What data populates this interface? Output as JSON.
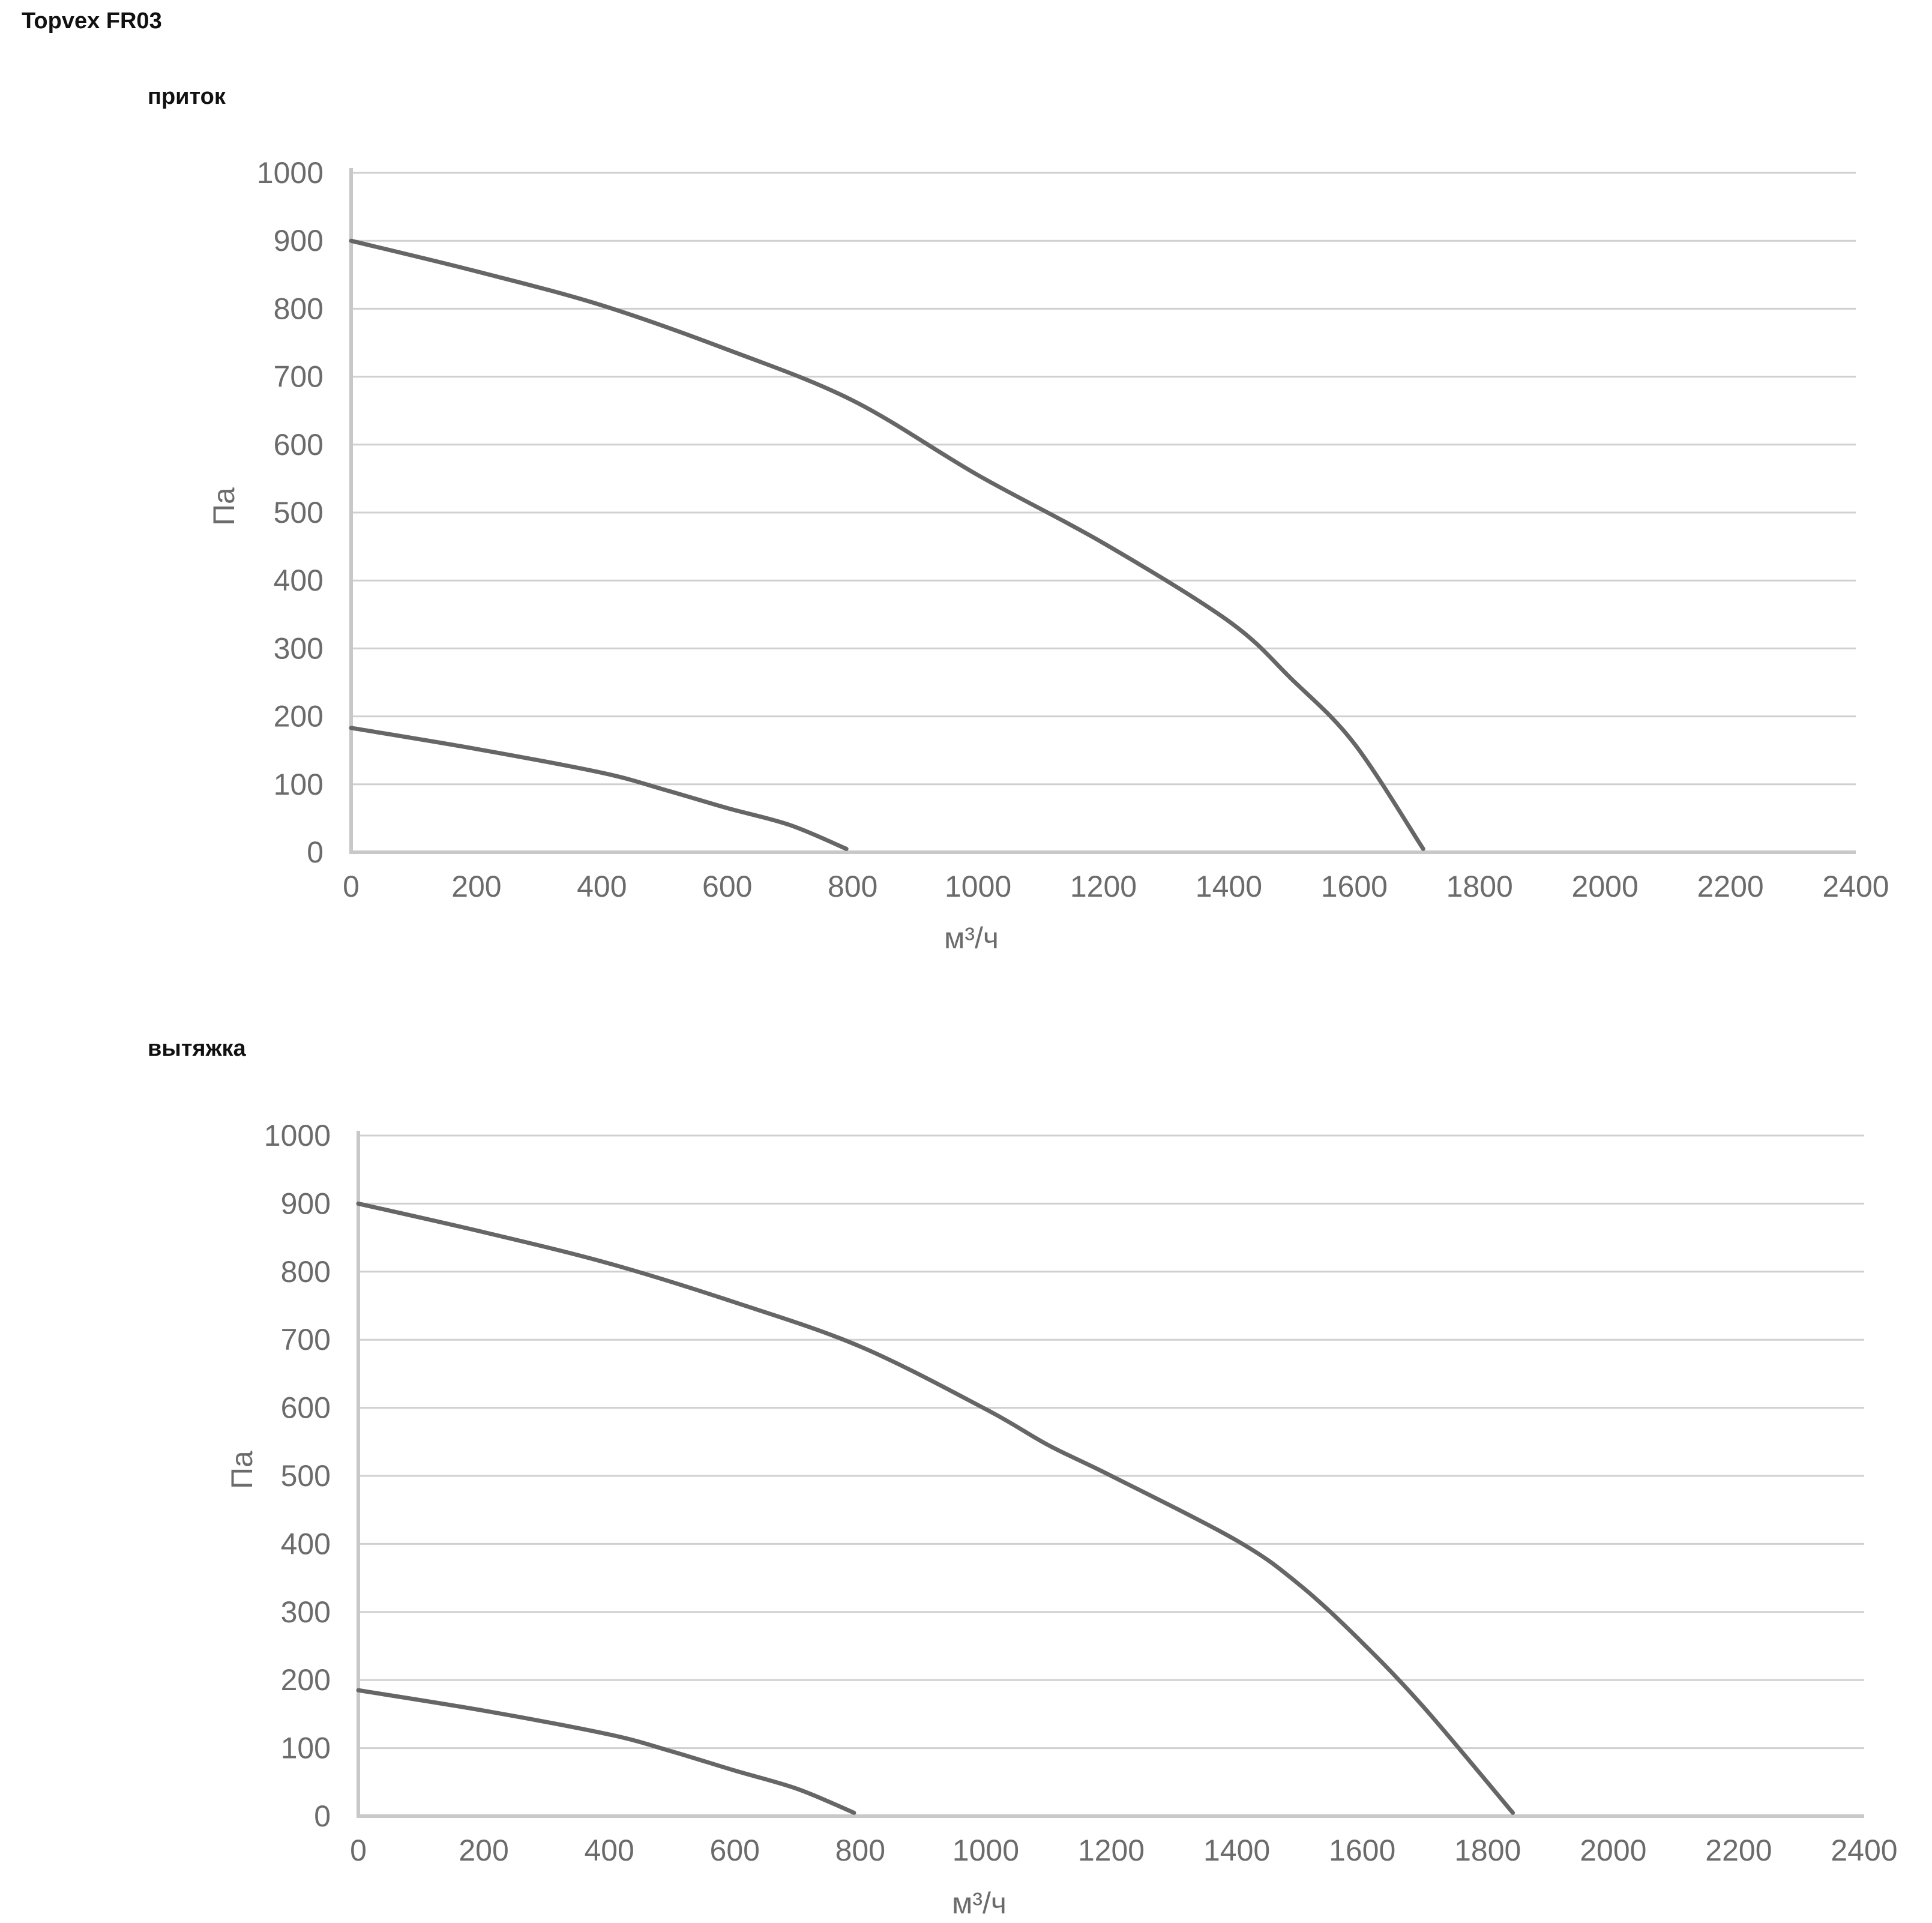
{
  "title": "Topvex FR03",
  "colors": {
    "curve": "#666666",
    "grid": "#d0d0d0",
    "axis": "#c8c8c8",
    "text": "#6b6b6b"
  },
  "chart_data": [
    {
      "type": "line",
      "title": "приток",
      "xlabel": "м³/ч",
      "ylabel": "Па",
      "xlim": [
        0,
        2400
      ],
      "ylim": [
        0,
        1000
      ],
      "xticks": [
        0,
        200,
        400,
        600,
        800,
        1000,
        1200,
        1400,
        1600,
        1800,
        2000,
        2200,
        2400
      ],
      "yticks": [
        0,
        100,
        200,
        300,
        400,
        500,
        600,
        700,
        800,
        900,
        1000
      ],
      "grid": true,
      "legend": "none",
      "series": [
        {
          "x": [
            0,
            200,
            400,
            600,
            800,
            1000,
            1200,
            1400,
            1500,
            1600,
            1710
          ],
          "y": [
            900,
            855,
            805,
            740,
            665,
            555,
            455,
            340,
            255,
            160,
            5
          ]
        },
        {
          "x": [
            0,
            200,
            400,
            500,
            600,
            700,
            790
          ],
          "y": [
            183,
            152,
            117,
            92,
            65,
            40,
            5
          ]
        }
      ]
    },
    {
      "type": "line",
      "title": "вытяжка",
      "xlabel": "м³/ч",
      "ylabel": "Па",
      "xlim": [
        0,
        2400
      ],
      "ylim": [
        0,
        1000
      ],
      "xticks": [
        0,
        200,
        400,
        600,
        800,
        1000,
        1200,
        1400,
        1600,
        1800,
        2000,
        2200,
        2400
      ],
      "yticks": [
        0,
        100,
        200,
        300,
        400,
        500,
        600,
        700,
        800,
        900,
        1000
      ],
      "grid": true,
      "legend": "none",
      "series": [
        {
          "x": [
            0,
            200,
            400,
            600,
            800,
            1000,
            1100,
            1200,
            1400,
            1500,
            1600,
            1700,
            1840
          ],
          "y": [
            900,
            858,
            812,
            755,
            690,
            598,
            545,
            500,
            405,
            340,
            255,
            158,
            5
          ]
        },
        {
          "x": [
            0,
            200,
            400,
            500,
            600,
            700,
            790
          ],
          "y": [
            185,
            155,
            120,
            95,
            67,
            40,
            5
          ]
        }
      ]
    }
  ]
}
